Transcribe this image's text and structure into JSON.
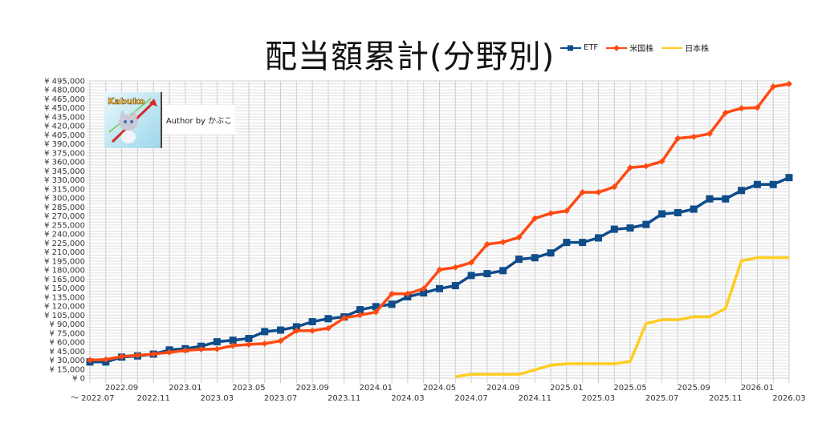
{
  "chart_data": {
    "type": "line",
    "title": "配当額累計(分野別)",
    "xlabel": "",
    "ylabel": "",
    "ylim": [
      0,
      495000
    ],
    "y_tick_step": 15000,
    "y_tick_prefix": "¥ ",
    "grid": true,
    "legend_position": "top-right",
    "x": [
      "2022.07",
      "2022.08",
      "2022.09",
      "2022.10",
      "2022.11",
      "2022.12",
      "2023.01",
      "2023.02",
      "2023.03",
      "2023.04",
      "2023.05",
      "2023.06",
      "2023.07",
      "2023.08",
      "2023.09",
      "2023.10",
      "2023.11",
      "2023.12",
      "2024.01",
      "2024.02",
      "2024.03",
      "2024.04",
      "2024.05",
      "2024.06",
      "2024.07",
      "2024.08",
      "2024.09",
      "2024.10",
      "2024.11",
      "2024.12",
      "2025.01",
      "2025.02",
      "2025.03",
      "2025.04",
      "2025.05",
      "2025.06",
      "2025.07",
      "2025.08",
      "2025.09",
      "2025.10",
      "2025.11",
      "2025.12",
      "2026.01",
      "2026.02",
      "2026.03"
    ],
    "x_tick_labels": [
      {
        "index": 0,
        "label": "～ 2022.07",
        "row": 2
      },
      {
        "index": 2,
        "label": "2022.09",
        "row": 1
      },
      {
        "index": 4,
        "label": "2022.11",
        "row": 2
      },
      {
        "index": 6,
        "label": "2023.01",
        "row": 1
      },
      {
        "index": 8,
        "label": "2023.03",
        "row": 2
      },
      {
        "index": 10,
        "label": "2023.05",
        "row": 1
      },
      {
        "index": 12,
        "label": "2023.07",
        "row": 2
      },
      {
        "index": 14,
        "label": "2023.09",
        "row": 1
      },
      {
        "index": 16,
        "label": "2023.11",
        "row": 2
      },
      {
        "index": 18,
        "label": "2024.01",
        "row": 1
      },
      {
        "index": 20,
        "label": "2024.03",
        "row": 2
      },
      {
        "index": 22,
        "label": "2024.05",
        "row": 1
      },
      {
        "index": 24,
        "label": "2024.07",
        "row": 2
      },
      {
        "index": 26,
        "label": "2024.09",
        "row": 1
      },
      {
        "index": 28,
        "label": "2024.11",
        "row": 2
      },
      {
        "index": 30,
        "label": "2025.01",
        "row": 1
      },
      {
        "index": 32,
        "label": "2025.03",
        "row": 2
      },
      {
        "index": 34,
        "label": "2025.05",
        "row": 1
      },
      {
        "index": 36,
        "label": "2025.07",
        "row": 2
      },
      {
        "index": 38,
        "label": "2025.09",
        "row": 1
      },
      {
        "index": 40,
        "label": "2025.11",
        "row": 2
      },
      {
        "index": 42,
        "label": "2026.01",
        "row": 1
      },
      {
        "index": 44,
        "label": "2026.03",
        "row": 2
      }
    ],
    "series": [
      {
        "name": "ETF",
        "color": "#0f4c8a",
        "marker": "square",
        "values": [
          27000,
          27000,
          35000,
          37000,
          40000,
          47000,
          49000,
          53000,
          60500,
          63000,
          66000,
          77500,
          80000,
          85500,
          94000,
          99000,
          102000,
          114000,
          119000,
          123000,
          135500,
          142000,
          149000,
          154000,
          171000,
          174000,
          179000,
          198000,
          200500,
          208500,
          226000,
          226000,
          233500,
          248000,
          250000,
          256000,
          273500,
          275500,
          281500,
          298500,
          298500,
          312500,
          322500,
          322500,
          334000
        ]
      },
      {
        "name": "米国株",
        "color": "#ff4a12",
        "marker": "diamond",
        "values": [
          30000,
          31000,
          36000,
          38000,
          40000,
          43000,
          46000,
          48000,
          48500,
          54000,
          56000,
          57500,
          62000,
          79000,
          79000,
          83000,
          100000,
          105000,
          110000,
          140500,
          140500,
          149000,
          180500,
          184500,
          192500,
          223000,
          226500,
          234500,
          266000,
          274500,
          278500,
          309500,
          309500,
          318500,
          350500,
          353000,
          361000,
          399500,
          402000,
          407000,
          442000,
          449500,
          450500,
          485500,
          490000
        ]
      },
      {
        "name": "日本株",
        "color": "#ffcc22",
        "marker": "none",
        "values": [
          null,
          null,
          null,
          null,
          null,
          null,
          null,
          null,
          null,
          null,
          null,
          null,
          null,
          null,
          null,
          null,
          null,
          null,
          null,
          null,
          null,
          null,
          null,
          2700,
          6300,
          6300,
          6300,
          6300,
          13800,
          21400,
          24000,
          24000,
          24000,
          24000,
          27500,
          91000,
          97300,
          97300,
          102100,
          102100,
          116000,
          195300,
          200700,
          200700,
          200700
        ]
      }
    ]
  },
  "overlay": {
    "logo_text": "Kabuko",
    "author_text": "Author by かぶこ"
  }
}
